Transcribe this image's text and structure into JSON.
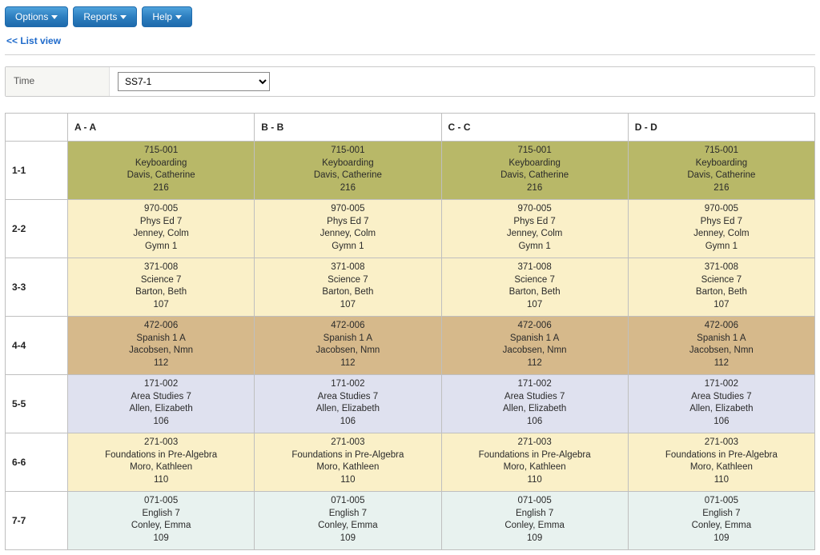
{
  "toolbar": {
    "options_label": "Options",
    "reports_label": "Reports",
    "help_label": "Help"
  },
  "list_view_link": "<< List view",
  "filter": {
    "label": "Time",
    "selected": "SS7-1"
  },
  "columns": [
    "A - A",
    "B - B",
    "C - C",
    "D - D"
  ],
  "row_colors": {
    "olive": "#b8b868",
    "cream": "#faf0c8",
    "tan": "#d6b98b",
    "lav": "#dfe1ef",
    "pale": "#e8f2ef"
  },
  "rows": [
    {
      "label": "1-1",
      "bg": "olive",
      "cell": {
        "code": "715-001",
        "course": "Keyboarding",
        "teacher": "Davis, Catherine",
        "room": "216"
      }
    },
    {
      "label": "2-2",
      "bg": "cream",
      "cell": {
        "code": "970-005",
        "course": "Phys Ed 7",
        "teacher": "Jenney, Colm",
        "room": "Gymn 1"
      }
    },
    {
      "label": "3-3",
      "bg": "cream",
      "cell": {
        "code": "371-008",
        "course": "Science 7",
        "teacher": "Barton, Beth",
        "room": "107"
      }
    },
    {
      "label": "4-4",
      "bg": "tan",
      "cell": {
        "code": "472-006",
        "course": "Spanish 1 A",
        "teacher": "Jacobsen, Nmn",
        "room": "112"
      }
    },
    {
      "label": "5-5",
      "bg": "lav",
      "cell": {
        "code": "171-002",
        "course": "Area Studies 7",
        "teacher": "Allen, Elizabeth",
        "room": "106"
      }
    },
    {
      "label": "6-6",
      "bg": "cream",
      "cell": {
        "code": "271-003",
        "course": "Foundations in Pre-Algebra",
        "teacher": "Moro, Kathleen",
        "room": "110"
      }
    },
    {
      "label": "7-7",
      "bg": "pale",
      "cell": {
        "code": "071-005",
        "course": "English 7",
        "teacher": "Conley, Emma",
        "room": "109"
      }
    }
  ]
}
